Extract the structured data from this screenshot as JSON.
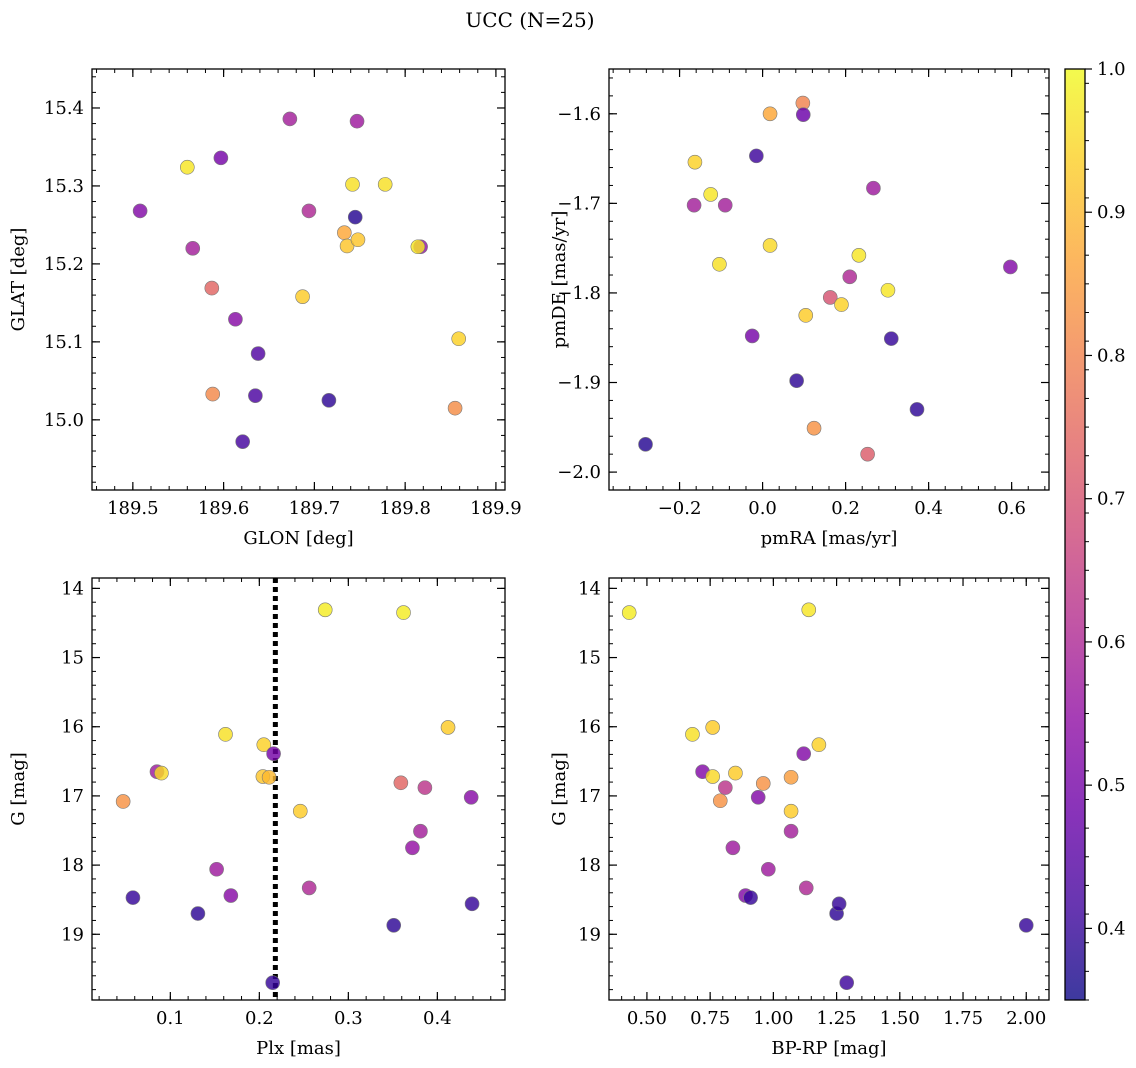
{
  "figure": {
    "title": "UCC (N=25)"
  },
  "colorbar": {
    "vmin": 0.35,
    "vmax": 1.0,
    "colormap": "plasma",
    "tick_values": [
      0.4,
      0.5,
      0.6,
      0.7,
      0.8,
      0.9,
      1.0
    ],
    "tick_labels": [
      "0.4",
      "0.5",
      "0.6",
      "0.7",
      "0.8",
      "0.9",
      "1.0"
    ]
  },
  "chart_data": [
    {
      "type": "scatter",
      "panel": "top-left",
      "xlabel": "GLON [deg]",
      "ylabel": "GLAT [deg]",
      "xlim": [
        189.455,
        189.91
      ],
      "ylim": [
        14.91,
        15.45
      ],
      "y_inverted": false,
      "xticks": [
        189.5,
        189.6,
        189.7,
        189.8,
        189.9
      ],
      "xtick_labels": [
        "189.5",
        "189.6",
        "189.7",
        "189.8",
        "189.9"
      ],
      "yticks": [
        15.0,
        15.1,
        15.2,
        15.3,
        15.4
      ],
      "ytick_labels": [
        "15.0",
        "15.1",
        "15.2",
        "15.3",
        "15.4"
      ],
      "points": [
        {
          "x": 189.508,
          "y": 15.268,
          "c": 0.52
        },
        {
          "x": 189.56,
          "y": 15.324,
          "c": 0.97
        },
        {
          "x": 189.566,
          "y": 15.22,
          "c": 0.58
        },
        {
          "x": 189.587,
          "y": 15.169,
          "c": 0.74
        },
        {
          "x": 189.588,
          "y": 15.033,
          "c": 0.81
        },
        {
          "x": 189.597,
          "y": 15.336,
          "c": 0.5
        },
        {
          "x": 189.613,
          "y": 15.129,
          "c": 0.53
        },
        {
          "x": 189.621,
          "y": 14.972,
          "c": 0.42
        },
        {
          "x": 189.635,
          "y": 15.031,
          "c": 0.43
        },
        {
          "x": 189.638,
          "y": 15.085,
          "c": 0.44
        },
        {
          "x": 189.673,
          "y": 15.386,
          "c": 0.58
        },
        {
          "x": 189.687,
          "y": 15.158,
          "c": 0.93
        },
        {
          "x": 189.694,
          "y": 15.268,
          "c": 0.6
        },
        {
          "x": 189.716,
          "y": 15.025,
          "c": 0.39
        },
        {
          "x": 189.733,
          "y": 15.24,
          "c": 0.87
        },
        {
          "x": 189.736,
          "y": 15.223,
          "c": 0.92
        },
        {
          "x": 189.742,
          "y": 15.302,
          "c": 0.96
        },
        {
          "x": 189.745,
          "y": 15.26,
          "c": 0.38
        },
        {
          "x": 189.747,
          "y": 15.383,
          "c": 0.57
        },
        {
          "x": 189.748,
          "y": 15.231,
          "c": 0.92
        },
        {
          "x": 189.778,
          "y": 15.302,
          "c": 0.96
        },
        {
          "x": 189.817,
          "y": 15.222,
          "c": 0.55
        },
        {
          "x": 189.814,
          "y": 15.222,
          "c": 0.97
        },
        {
          "x": 189.855,
          "y": 15.015,
          "c": 0.82
        },
        {
          "x": 189.859,
          "y": 15.104,
          "c": 0.94
        }
      ]
    },
    {
      "type": "scatter",
      "panel": "top-right",
      "xlabel": "pmRA [mas/yr]",
      "ylabel": "pmDE [mas/yr]",
      "xlim": [
        -0.37,
        0.69
      ],
      "ylim": [
        -2.02,
        -1.55
      ],
      "y_inverted": false,
      "xticks": [
        -0.2,
        0.0,
        0.2,
        0.4,
        0.6
      ],
      "xtick_labels": [
        "−0.2",
        "0.0",
        "0.2",
        "0.4",
        "0.6"
      ],
      "yticks": [
        -2.0,
        -1.9,
        -1.8,
        -1.7,
        -1.6
      ],
      "ytick_labels": [
        "−2.0",
        "−1.9",
        "−1.8",
        "−1.7",
        "−1.6"
      ],
      "points": [
        {
          "x": -0.282,
          "y": -1.969,
          "c": 0.38
        },
        {
          "x": -0.163,
          "y": -1.654,
          "c": 0.94
        },
        {
          "x": -0.165,
          "y": -1.702,
          "c": 0.58
        },
        {
          "x": -0.125,
          "y": -1.69,
          "c": 0.97
        },
        {
          "x": -0.104,
          "y": -1.768,
          "c": 0.96
        },
        {
          "x": -0.09,
          "y": -1.702,
          "c": 0.58
        },
        {
          "x": -0.025,
          "y": -1.848,
          "c": 0.5
        },
        {
          "x": -0.015,
          "y": -1.647,
          "c": 0.41
        },
        {
          "x": 0.018,
          "y": -1.747,
          "c": 0.95
        },
        {
          "x": 0.018,
          "y": -1.6,
          "c": 0.87
        },
        {
          "x": 0.082,
          "y": -1.898,
          "c": 0.39
        },
        {
          "x": 0.097,
          "y": -1.588,
          "c": 0.8
        },
        {
          "x": 0.098,
          "y": -1.601,
          "c": 0.48
        },
        {
          "x": 0.104,
          "y": -1.825,
          "c": 0.93
        },
        {
          "x": 0.124,
          "y": -1.951,
          "c": 0.83
        },
        {
          "x": 0.163,
          "y": -1.805,
          "c": 0.7
        },
        {
          "x": 0.19,
          "y": -1.813,
          "c": 0.94
        },
        {
          "x": 0.21,
          "y": -1.782,
          "c": 0.6
        },
        {
          "x": 0.232,
          "y": -1.758,
          "c": 0.97
        },
        {
          "x": 0.253,
          "y": -1.98,
          "c": 0.72
        },
        {
          "x": 0.267,
          "y": -1.683,
          "c": 0.57
        },
        {
          "x": 0.302,
          "y": -1.797,
          "c": 0.97
        },
        {
          "x": 0.31,
          "y": -1.851,
          "c": 0.4
        },
        {
          "x": 0.372,
          "y": -1.93,
          "c": 0.39
        },
        {
          "x": 0.597,
          "y": -1.771,
          "c": 0.52
        }
      ]
    },
    {
      "type": "scatter",
      "panel": "bottom-left",
      "xlabel": "Plx [mas]",
      "ylabel": "G [mag]",
      "xlim": [
        0.012,
        0.476
      ],
      "ylim": [
        19.95,
        13.85
      ],
      "y_inverted": true,
      "xticks": [
        0.1,
        0.2,
        0.3,
        0.4
      ],
      "xtick_labels": [
        "0.1",
        "0.2",
        "0.3",
        "0.4"
      ],
      "yticks": [
        14,
        15,
        16,
        17,
        18,
        19
      ],
      "ytick_labels": [
        "14",
        "15",
        "16",
        "17",
        "18",
        "19"
      ],
      "vline": {
        "x": 0.218,
        "style": "dotted"
      },
      "points": [
        {
          "x": 0.047,
          "y": 17.08,
          "c": 0.83
        },
        {
          "x": 0.058,
          "y": 18.47,
          "c": 0.4
        },
        {
          "x": 0.085,
          "y": 16.65,
          "c": 0.57
        },
        {
          "x": 0.09,
          "y": 16.67,
          "c": 0.95
        },
        {
          "x": 0.131,
          "y": 18.7,
          "c": 0.39
        },
        {
          "x": 0.152,
          "y": 18.06,
          "c": 0.57
        },
        {
          "x": 0.162,
          "y": 16.11,
          "c": 0.96
        },
        {
          "x": 0.168,
          "y": 18.44,
          "c": 0.53
        },
        {
          "x": 0.204,
          "y": 16.72,
          "c": 0.92
        },
        {
          "x": 0.205,
          "y": 16.26,
          "c": 0.94
        },
        {
          "x": 0.211,
          "y": 16.73,
          "c": 0.9
        },
        {
          "x": 0.216,
          "y": 16.39,
          "c": 0.5
        },
        {
          "x": 0.215,
          "y": 19.7,
          "c": 0.4
        },
        {
          "x": 0.246,
          "y": 17.22,
          "c": 0.93
        },
        {
          "x": 0.256,
          "y": 18.33,
          "c": 0.6
        },
        {
          "x": 0.274,
          "y": 14.31,
          "c": 0.98
        },
        {
          "x": 0.351,
          "y": 18.87,
          "c": 0.39
        },
        {
          "x": 0.359,
          "y": 16.81,
          "c": 0.74
        },
        {
          "x": 0.362,
          "y": 14.35,
          "c": 0.98
        },
        {
          "x": 0.372,
          "y": 17.75,
          "c": 0.55
        },
        {
          "x": 0.381,
          "y": 17.51,
          "c": 0.58
        },
        {
          "x": 0.386,
          "y": 16.88,
          "c": 0.63
        },
        {
          "x": 0.412,
          "y": 16.01,
          "c": 0.93
        },
        {
          "x": 0.438,
          "y": 17.02,
          "c": 0.53
        },
        {
          "x": 0.439,
          "y": 18.56,
          "c": 0.4
        }
      ]
    },
    {
      "type": "scatter",
      "panel": "bottom-right",
      "xlabel": "BP-RP [mag]",
      "ylabel": "G [mag]",
      "xlim": [
        0.35,
        2.09
      ],
      "ylim": [
        19.95,
        13.85
      ],
      "y_inverted": true,
      "xticks": [
        0.5,
        0.75,
        1.0,
        1.25,
        1.5,
        1.75,
        2.0
      ],
      "xtick_labels": [
        "0.50",
        "0.75",
        "1.00",
        "1.25",
        "1.50",
        "1.75",
        "2.00"
      ],
      "yticks": [
        14,
        15,
        16,
        17,
        18,
        19
      ],
      "ytick_labels": [
        "14",
        "15",
        "16",
        "17",
        "18",
        "19"
      ],
      "points": [
        {
          "x": 0.43,
          "y": 14.35,
          "c": 0.98
        },
        {
          "x": 0.68,
          "y": 16.11,
          "c": 0.96
        },
        {
          "x": 0.72,
          "y": 16.65,
          "c": 0.52
        },
        {
          "x": 0.76,
          "y": 16.01,
          "c": 0.93
        },
        {
          "x": 0.76,
          "y": 16.72,
          "c": 0.95
        },
        {
          "x": 0.79,
          "y": 17.07,
          "c": 0.83
        },
        {
          "x": 0.81,
          "y": 16.88,
          "c": 0.63
        },
        {
          "x": 0.84,
          "y": 17.75,
          "c": 0.57
        },
        {
          "x": 0.85,
          "y": 16.67,
          "c": 0.93
        },
        {
          "x": 0.89,
          "y": 18.44,
          "c": 0.52
        },
        {
          "x": 0.91,
          "y": 18.47,
          "c": 0.4
        },
        {
          "x": 0.94,
          "y": 17.02,
          "c": 0.52
        },
        {
          "x": 0.96,
          "y": 16.82,
          "c": 0.83
        },
        {
          "x": 0.98,
          "y": 18.06,
          "c": 0.57
        },
        {
          "x": 1.07,
          "y": 16.73,
          "c": 0.85
        },
        {
          "x": 1.07,
          "y": 17.22,
          "c": 0.93
        },
        {
          "x": 1.07,
          "y": 17.51,
          "c": 0.58
        },
        {
          "x": 1.12,
          "y": 16.39,
          "c": 0.52
        },
        {
          "x": 1.13,
          "y": 18.33,
          "c": 0.6
        },
        {
          "x": 1.14,
          "y": 14.31,
          "c": 0.97
        },
        {
          "x": 1.18,
          "y": 16.26,
          "c": 0.94
        },
        {
          "x": 1.25,
          "y": 18.7,
          "c": 0.39
        },
        {
          "x": 1.26,
          "y": 18.56,
          "c": 0.4
        },
        {
          "x": 1.29,
          "y": 19.7,
          "c": 0.41
        },
        {
          "x": 2.0,
          "y": 18.87,
          "c": 0.4
        }
      ]
    }
  ]
}
